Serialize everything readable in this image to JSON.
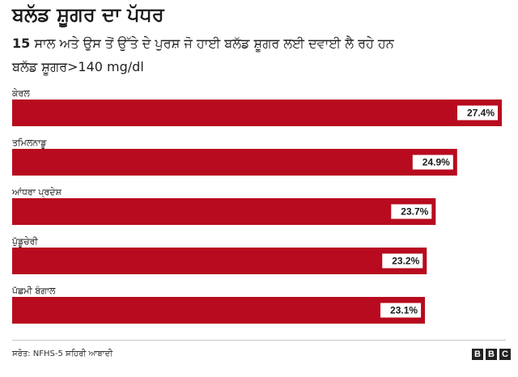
{
  "header": {
    "title": "ਬਲੱਡ ਸ਼ੂਗਰ ਦਾ ਪੱਧਰ",
    "subtitle_number": "15",
    "subtitle_text": "ਸਾਲ ਅਤੇ ਉਸ ਤੋਂ ਉੱਤੇ ਦੇ ਪੁਰਸ਼ ਜੋ ਹਾਈ ਬਲੱਡ ਸ਼ੂਗਰ ਲਈ ਦਵਾਈ ਲੈ ਰਹੇ ਹਨ",
    "subtitle2": "ਬਲੱਡ ਸ਼ੂਗਰ>140 mg/dl"
  },
  "footer": {
    "source": "ਸਰੋਤ: NFHS-5 ਸ਼ਹਿਰੀ ਆਬਾਦੀ",
    "logo_letters": [
      "B",
      "B",
      "C"
    ]
  },
  "colors": {
    "bar": "#b80b1f",
    "label_bg": "#ffffff",
    "text": "#222222"
  },
  "chart_data": {
    "type": "bar",
    "orientation": "horizontal",
    "categories": [
      "ਕੇਰਲ",
      "ਤਮਿਲਨਾਡੂ",
      "ਆਂਧਰਾ ਪ੍ਰਦੇਸ਼",
      "ਪੁੱਡੂਚੇਰੀ",
      "ਪੱਛਮੀ ਬੰਗਾਲ"
    ],
    "values": [
      27.4,
      24.9,
      23.7,
      23.2,
      23.1
    ],
    "value_labels": [
      "27.4%",
      "24.9%",
      "23.7%",
      "23.2%",
      "23.1%"
    ],
    "unit": "%",
    "xlim": [
      0,
      27.4
    ],
    "grid": false,
    "legend": "none"
  }
}
